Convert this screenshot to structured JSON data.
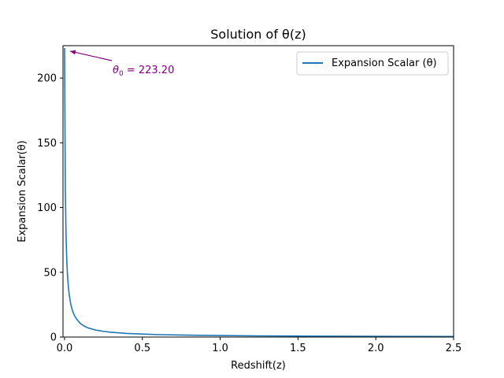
{
  "chart_data": {
    "type": "line",
    "title": "Solution of θ(z)",
    "xlabel": "Redshift(z)",
    "ylabel": "Expansion Scalar(θ)",
    "xlim": [
      -0.01,
      2.5
    ],
    "ylim": [
      0,
      225
    ],
    "x_ticks": [
      0.0,
      0.5,
      1.0,
      1.5,
      2.0,
      2.5
    ],
    "x_tick_labels": [
      "0.0",
      "0.5",
      "1.0",
      "1.5",
      "2.0",
      "2.5"
    ],
    "y_ticks": [
      0,
      50,
      100,
      150,
      200
    ],
    "y_tick_labels": [
      "0",
      "50",
      "100",
      "150",
      "200"
    ],
    "grid": false,
    "legend_position": "top-right",
    "series": [
      {
        "name": "Expansion Scalar (θ)",
        "color": "#1f77b4",
        "x": [
          0.0,
          0.005,
          0.01,
          0.015,
          0.02,
          0.025,
          0.03,
          0.04,
          0.05,
          0.06,
          0.075,
          0.1,
          0.125,
          0.15,
          0.2,
          0.25,
          0.3,
          0.4,
          0.5,
          0.6,
          0.75,
          1.0,
          1.25,
          1.5,
          1.75,
          2.0,
          2.25,
          2.5
        ],
        "y": [
          223.2,
          114.0,
          76.0,
          57.0,
          45.6,
          38.0,
          32.6,
          25.3,
          20.7,
          17.5,
          14.2,
          10.6,
          8.5,
          7.1,
          5.4,
          4.4,
          3.7,
          2.8,
          2.3,
          1.9,
          1.55,
          1.15,
          0.92,
          0.77,
          0.66,
          0.58,
          0.51,
          0.46
        ]
      }
    ],
    "annotation": {
      "symbol": "θ",
      "subscript": "0",
      "text": " = 223.20",
      "color": "#800080",
      "x": 0.0,
      "y": 223.2
    }
  }
}
